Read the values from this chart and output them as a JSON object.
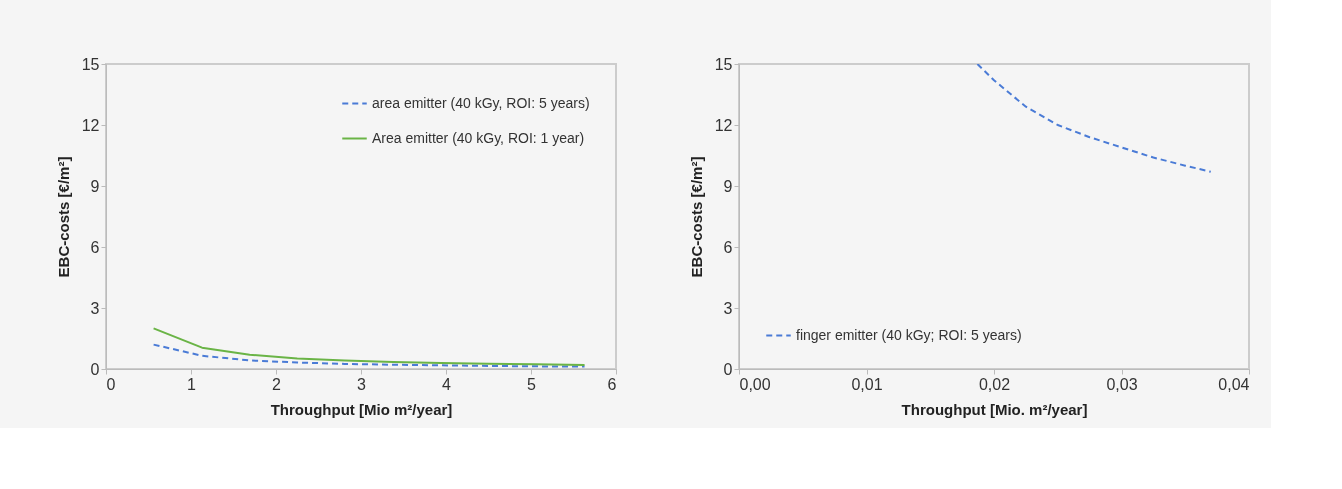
{
  "chart_data": [
    {
      "type": "line",
      "xlabel": "Throughput [Mio m²/year]",
      "ylabel": "EBC-costs [€/m²]",
      "xlim": [
        0,
        6
      ],
      "xticks": [
        0,
        1,
        2,
        3,
        4,
        5,
        6
      ],
      "ylim": [
        0,
        15
      ],
      "yticks": [
        0,
        3,
        6,
        9,
        12,
        15
      ],
      "grid": false,
      "legend": "top right",
      "marker": "none",
      "x": [
        0.56,
        1.13,
        1.69,
        2.25,
        2.81,
        3.38,
        3.94,
        4.5,
        5.06,
        5.63
      ],
      "series": [
        {
          "name": "area emitter (40 kGy, ROI: 5 years)",
          "color": "#4a7bd6",
          "line_style": "dashed",
          "values": [
            1.2,
            0.65,
            0.42,
            0.32,
            0.25,
            0.21,
            0.18,
            0.15,
            0.13,
            0.12
          ]
        },
        {
          "name": "Area emitter (40 kGy, ROI: 1 year)",
          "color": "#6ab446",
          "line_style": "solid",
          "values": [
            2.0,
            1.05,
            0.7,
            0.52,
            0.42,
            0.35,
            0.3,
            0.26,
            0.23,
            0.2
          ]
        }
      ]
    },
    {
      "type": "line",
      "xlabel": "Throughput [Mio. m²/year]",
      "ylabel": "EBC-costs [€/m²]",
      "xlim": [
        0,
        0.04
      ],
      "xticks": [
        {
          "value": 0,
          "label": "0,00"
        },
        {
          "value": 0.01,
          "label": "0,01"
        },
        {
          "value": 0.02,
          "label": "0,02"
        },
        {
          "value": 0.03,
          "label": "0,03"
        },
        {
          "value": 0.04,
          "label": "0,04"
        }
      ],
      "ylim": [
        0,
        15
      ],
      "yticks": [
        0,
        3,
        6,
        9,
        12,
        15
      ],
      "grid": false,
      "legend": "bottom left",
      "marker": "none",
      "x": [
        0.0187,
        0.02,
        0.0225,
        0.025,
        0.0275,
        0.03,
        0.0325,
        0.035,
        0.037
      ],
      "series": [
        {
          "name": "finger emitter (40 kGy; ROI: 5 years)",
          "color": "#4a7bd6",
          "line_style": "dashed",
          "values": [
            15,
            14.2,
            12.9,
            12.0,
            11.4,
            10.9,
            10.4,
            10.0,
            9.7
          ]
        }
      ]
    }
  ]
}
